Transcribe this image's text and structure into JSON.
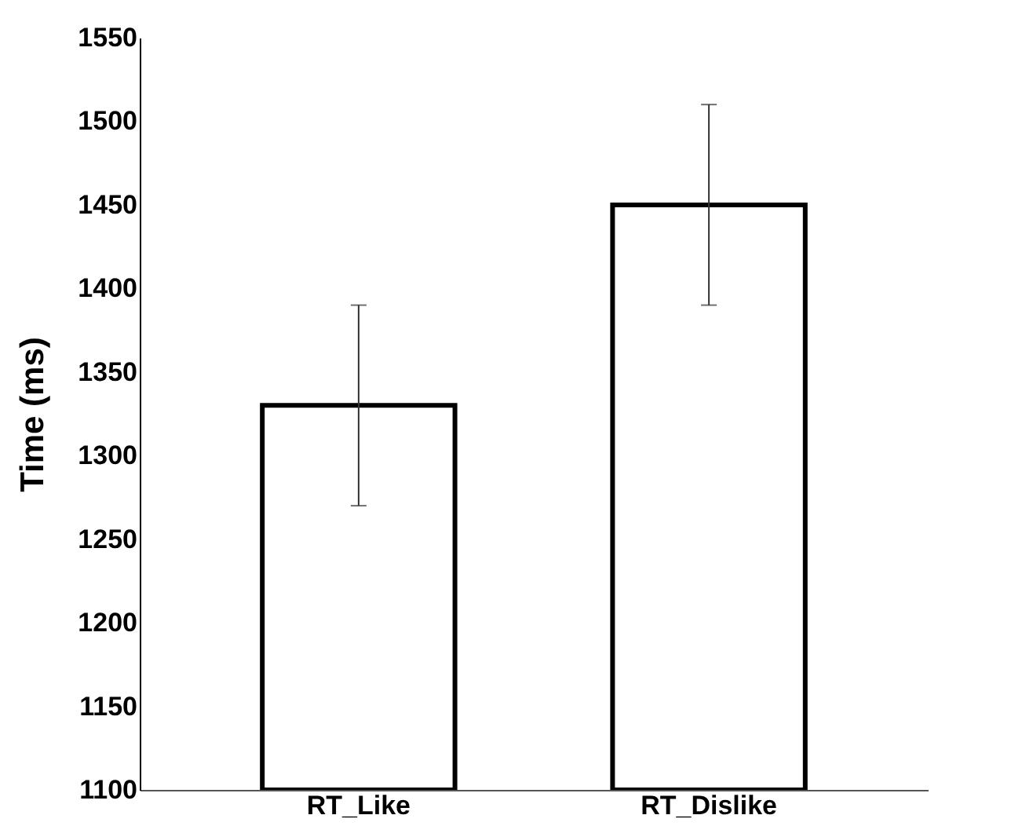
{
  "chart_data": {
    "type": "bar",
    "ylabel": "Time (ms)",
    "categories": [
      "RT_Like",
      "RT_Dislike"
    ],
    "values": [
      1330,
      1450
    ],
    "errors": [
      60,
      60
    ],
    "color": "#ffffff",
    "ylim": [
      1100,
      1550
    ],
    "yticks": [
      1100,
      1150,
      1200,
      1250,
      1300,
      1350,
      1400,
      1450,
      1500,
      1550
    ],
    "grid": false
  }
}
